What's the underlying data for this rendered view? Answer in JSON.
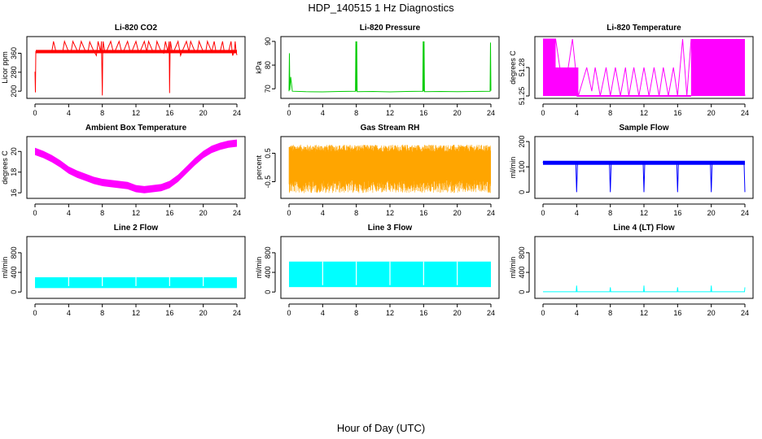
{
  "figure": {
    "title": "HDP_140515  1 Hz Diagnostics",
    "xlabel": "Hour of Day (UTC)"
  },
  "chart_data": [
    {
      "type": "line",
      "title": "Li-820 CO2",
      "ylabel": "Licor ppm",
      "color": "#ff0000",
      "xlim": [
        0,
        24
      ],
      "xticks": [
        0,
        4,
        8,
        12,
        16,
        20,
        24
      ],
      "ylim": [
        180,
        420
      ],
      "yticks": [
        200,
        280,
        360
      ],
      "series": [
        {
          "name": "CO2",
          "x": [
            0,
            0.05,
            0.1,
            0.12,
            0.2,
            1.3,
            1.5,
            2.0,
            2.2,
            2.5,
            3.0,
            3.3,
            3.5,
            4.0,
            4.3,
            4.5,
            5.0,
            5.2,
            5.5,
            6.0,
            6.3,
            6.5,
            7.0,
            7.3,
            7.5,
            7.8,
            7.9,
            8.0,
            8.05,
            8.1,
            8.3,
            8.5,
            9.0,
            9.3,
            9.5,
            10.0,
            10.3,
            10.5,
            11.0,
            11.3,
            11.5,
            12.0,
            12.3,
            12.5,
            13.0,
            13.3,
            13.5,
            14.0,
            14.3,
            14.5,
            15.0,
            15.3,
            15.5,
            15.8,
            15.95,
            16.0,
            16.05,
            16.1,
            16.3,
            16.5,
            17.0,
            17.3,
            17.5,
            18.0,
            18.3,
            18.5,
            19.0,
            19.3,
            19.5,
            20.0,
            20.3,
            20.5,
            21.0,
            21.3,
            21.5,
            22.0,
            22.3,
            22.5,
            23.0,
            23.3,
            23.5,
            23.7,
            23.8,
            23.9,
            24.0
          ],
          "values": [
            282,
            195,
            368,
            368,
            365,
            372,
            366,
            368,
            410,
            366,
            372,
            368,
            410,
            366,
            368,
            410,
            372,
            366,
            410,
            368,
            366,
            408,
            368,
            350,
            410,
            366,
            410,
            182,
            366,
            410,
            366,
            368,
            410,
            366,
            368,
            410,
            366,
            366,
            410,
            368,
            366,
            410,
            366,
            368,
            410,
            366,
            410,
            368,
            366,
            410,
            366,
            360,
            410,
            366,
            410,
            192,
            366,
            410,
            366,
            368,
            410,
            350,
            368,
            410,
            366,
            410,
            368,
            366,
            410,
            366,
            368,
            410,
            366,
            410,
            368,
            366,
            410,
            366,
            366,
            410,
            350,
            368,
            410,
            366,
            352
          ]
        }
      ]
    },
    {
      "type": "line",
      "title": "Li-820 Pressure",
      "ylabel": "kPa",
      "color": "#00cc00",
      "xlim": [
        0,
        24
      ],
      "xticks": [
        0,
        4,
        8,
        12,
        16,
        20,
        24
      ],
      "ylim": [
        67,
        91
      ],
      "yticks": [
        70,
        80,
        90
      ],
      "series": [
        {
          "name": "Pressure",
          "x": [
            0,
            0.05,
            0.1,
            0.2,
            0.4,
            2,
            4,
            6,
            7.9,
            7.95,
            8.0,
            8.05,
            8.1,
            10,
            12,
            14,
            15.9,
            15.95,
            16.0,
            16.05,
            16.1,
            18,
            20,
            22,
            23.9,
            23.95,
            24.0
          ],
          "values": [
            69.0,
            85.0,
            69.5,
            75.0,
            69.0,
            68.8,
            68.7,
            68.9,
            69.0,
            90.0,
            69.0,
            90.0,
            68.8,
            68.9,
            68.7,
            68.9,
            69.0,
            90.0,
            69.0,
            90.0,
            68.8,
            68.9,
            68.8,
            68.9,
            69.0,
            89.5,
            69.2
          ]
        }
      ]
    },
    {
      "type": "line",
      "title": "Li-820 Temperature",
      "ylabel": "degrees C",
      "color": "#ff00ff",
      "xlim": [
        0,
        24
      ],
      "xticks": [
        0,
        4,
        8,
        12,
        16,
        20,
        24
      ],
      "ylim": [
        51.25,
        51.31
      ],
      "yticks": [
        51.25,
        51.28
      ],
      "series": [
        {
          "name": "Temperature",
          "x": [
            0.0,
            1.5,
            2.5,
            3.5,
            4.2,
            5.2,
            5.8,
            6.2,
            6.8,
            7.5,
            8.0,
            8.6,
            9.2,
            9.8,
            10.2,
            10.8,
            11.4,
            12.0,
            12.6,
            13.2,
            13.8,
            14.3,
            14.9,
            15.5,
            16.0,
            16.6,
            17.1,
            17.6,
            18.2,
            19.0,
            20.0,
            21.0,
            22.0,
            23.0,
            24.0
          ],
          "values": [
            51.31,
            51.31,
            51.25,
            51.31,
            51.25,
            51.28,
            51.255,
            51.28,
            51.25,
            51.28,
            51.25,
            51.28,
            51.25,
            51.28,
            51.25,
            51.28,
            51.25,
            51.28,
            51.25,
            51.28,
            51.25,
            51.28,
            51.25,
            51.28,
            51.25,
            51.31,
            51.25,
            51.31,
            51.25,
            51.31,
            51.25,
            51.31,
            51.25,
            51.31,
            51.25
          ]
        }
      ]
    },
    {
      "type": "line",
      "title": "Ambient Box Temperature",
      "ylabel": "degrees C",
      "color": "#ff00ff",
      "xlim": [
        0,
        24
      ],
      "xticks": [
        0,
        4,
        8,
        12,
        16,
        20,
        24
      ],
      "ylim": [
        15.7,
        21.2
      ],
      "yticks": [
        16,
        18,
        20
      ],
      "series": [
        {
          "name": "Box temperature",
          "x": [
            0,
            1,
            2,
            3,
            4,
            5,
            6,
            7,
            8,
            9,
            10,
            11,
            12,
            13,
            14,
            15,
            16,
            17,
            18,
            19,
            20,
            21,
            22,
            23,
            24
          ],
          "values": [
            20.0,
            19.7,
            19.3,
            18.8,
            18.2,
            17.8,
            17.5,
            17.2,
            17.0,
            16.9,
            16.8,
            16.7,
            16.4,
            16.3,
            16.4,
            16.5,
            16.8,
            17.4,
            18.2,
            19.0,
            19.7,
            20.2,
            20.5,
            20.7,
            20.8
          ]
        }
      ]
    },
    {
      "type": "line",
      "title": "Gas Stream RH",
      "ylabel": "percent",
      "color": "#ffa500",
      "xlim": [
        0,
        24
      ],
      "xticks": [
        0,
        4,
        8,
        12,
        16,
        20,
        24
      ],
      "ylim": [
        -1.0,
        1.0
      ],
      "yticks": [
        -0.5,
        0.5
      ],
      "series": [
        {
          "name": "RH",
          "x": [
            0,
            24
          ],
          "values": [
            0.05,
            0.05
          ]
        }
      ]
    },
    {
      "type": "line",
      "title": "Sample Flow",
      "ylabel": "ml/min",
      "color": "#0000ff",
      "xlim": [
        0,
        24
      ],
      "xticks": [
        0,
        4,
        8,
        12,
        16,
        20,
        24
      ],
      "ylim": [
        -15,
        210
      ],
      "yticks": [
        0,
        100,
        200
      ],
      "series": [
        {
          "name": "Sample flow",
          "x": [
            0,
            0.1,
            3.9,
            4.0,
            4.1,
            7.9,
            8.0,
            8.1,
            11.9,
            12.0,
            12.1,
            15.9,
            16.0,
            16.1,
            19.9,
            20.0,
            20.1,
            23.9,
            24.0
          ],
          "values": [
            120,
            112,
            115,
            0,
            115,
            112,
            0,
            115,
            114,
            0,
            116,
            118,
            0,
            115,
            114,
            0,
            116,
            112,
            0
          ]
        }
      ]
    },
    {
      "type": "line",
      "title": "Line 2 Flow",
      "ylabel": "ml/min",
      "color": "#00ffff",
      "xlim": [
        0,
        24
      ],
      "xticks": [
        0,
        4,
        8,
        12,
        16,
        20,
        24
      ],
      "ylim": [
        -80,
        1080
      ],
      "yticks": [
        0,
        400,
        800
      ],
      "series": [
        {
          "name": "Line 2 flow",
          "x": [
            0,
            24
          ],
          "values": [
            200,
            200
          ]
        }
      ]
    },
    {
      "type": "line",
      "title": "Line 3 Flow",
      "ylabel": "ml/min",
      "color": "#00ffff",
      "xlim": [
        0,
        24
      ],
      "xticks": [
        0,
        4,
        8,
        12,
        16,
        20,
        24
      ],
      "ylim": [
        -80,
        1080
      ],
      "yticks": [
        0,
        400,
        800
      ],
      "series": [
        {
          "name": "Line 3 flow",
          "x": [
            0,
            24
          ],
          "values": [
            380,
            380
          ]
        }
      ]
    },
    {
      "type": "line",
      "title": "Line 4 (LT) Flow",
      "ylabel": "ml/min",
      "color": "#00ffff",
      "xlim": [
        0,
        24
      ],
      "xticks": [
        0,
        4,
        8,
        12,
        16,
        20,
        24
      ],
      "ylim": [
        -80,
        1080
      ],
      "yticks": [
        0,
        400,
        800
      ],
      "series": [
        {
          "name": "Line 4 flow",
          "x": [
            0,
            3.95,
            4.0,
            4.05,
            7.95,
            8.0,
            8.05,
            11.95,
            12.0,
            12.05,
            15.95,
            16.0,
            16.05,
            19.95,
            20.0,
            20.05,
            23.95,
            24.0
          ],
          "values": [
            5,
            5,
            130,
            5,
            5,
            95,
            5,
            5,
            130,
            5,
            5,
            95,
            5,
            5,
            130,
            5,
            5,
            95
          ]
        }
      ]
    }
  ]
}
